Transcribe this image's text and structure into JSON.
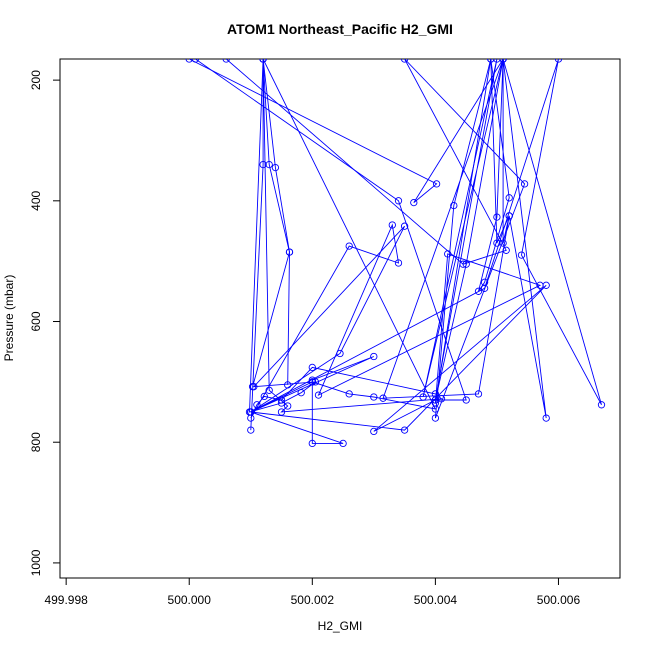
{
  "chart_data": {
    "type": "line",
    "title": "ATOM1 Northeast_Pacific H2_GMI",
    "xlabel": "H2_GMI",
    "ylabel": "Pressure (mbar)",
    "xlim": [
      499.9979,
      500.007
    ],
    "ylim": [
      1025,
      165
    ],
    "y_reversed": true,
    "x_ticks": [
      499.998,
      500.0,
      500.002,
      500.004,
      500.006
    ],
    "x_tick_labels": [
      "499.998",
      "500.000",
      "500.002",
      "500.004",
      "500.006"
    ],
    "y_ticks": [
      200,
      400,
      600,
      800,
      1000
    ],
    "y_tick_labels": [
      "200",
      "400",
      "600",
      "800",
      "1000"
    ],
    "grid": false,
    "legend": "none",
    "series_color": "#0000ff",
    "series": [
      {
        "x": [
          500.0,
          500.00402,
          500.00365,
          500.0051,
          500.0051,
          500.0052,
          500.0058,
          500.0051,
          500.005,
          500.0047,
          500.0048,
          500.0052,
          500.0049,
          500.004,
          500.0042,
          500.0057,
          500.0021,
          500.0033,
          500.0034,
          500.0026,
          500.001,
          500.0011,
          500.00122,
          500.0015,
          500.002,
          500.004,
          500.0041,
          500.0015,
          500.0016,
          500.0013,
          500.0012,
          500.0012,
          500.001
        ],
        "y": [
          165,
          372,
          403,
          165,
          470,
          425,
          760,
          165,
          427,
          550,
          535,
          395,
          165,
          735,
          488,
          540,
          722,
          440,
          503,
          475,
          760,
          738,
          724,
          730,
          676,
          720,
          728,
          750,
          740,
          714,
          165,
          340,
          780
        ]
      },
      {
        "x": [
          500.0006,
          500.00445,
          500.00515,
          500.0035,
          500.00545,
          500.004,
          500.0043,
          500.0049,
          500.005,
          500.0052,
          500.0047,
          500.00315,
          500.0051,
          500.0038,
          500.005,
          500.004,
          500.003,
          500.0058,
          500.0035,
          500.001,
          500.0025,
          500.002,
          500.002,
          500.003,
          500.001,
          500.002,
          500.002,
          500.0026,
          500.003,
          500.004,
          500.0012,
          500.0014,
          500.00163,
          500.0016
        ],
        "y": [
          165,
          505,
          482,
          165,
          372,
          760,
          408,
          165,
          470,
          425,
          720,
          727,
          165,
          725,
          165,
          730,
          782,
          540,
          780,
          750,
          802,
          802,
          697,
          658,
          750,
          700,
          700,
          720,
          725,
          745,
          165,
          345,
          485,
          705
        ]
      },
      {
        "x": [
          500.0001,
          500.0034,
          500.0045,
          500.004,
          500.0045,
          500.0051,
          500.0067,
          500.0054,
          500.006,
          500.0048,
          500.001,
          500.00245,
          500.0035,
          500.00105,
          500.00205,
          500.00182,
          500.0015,
          500.00098,
          500.0012,
          500.0013,
          500.00163,
          500.00103
        ],
        "y": [
          165,
          400,
          730,
          730,
          505,
          165,
          738,
          490,
          165,
          545,
          750,
          653,
          442,
          708,
          700,
          718,
          735,
          750,
          165,
          340,
          485,
          708
        ]
      }
    ]
  }
}
